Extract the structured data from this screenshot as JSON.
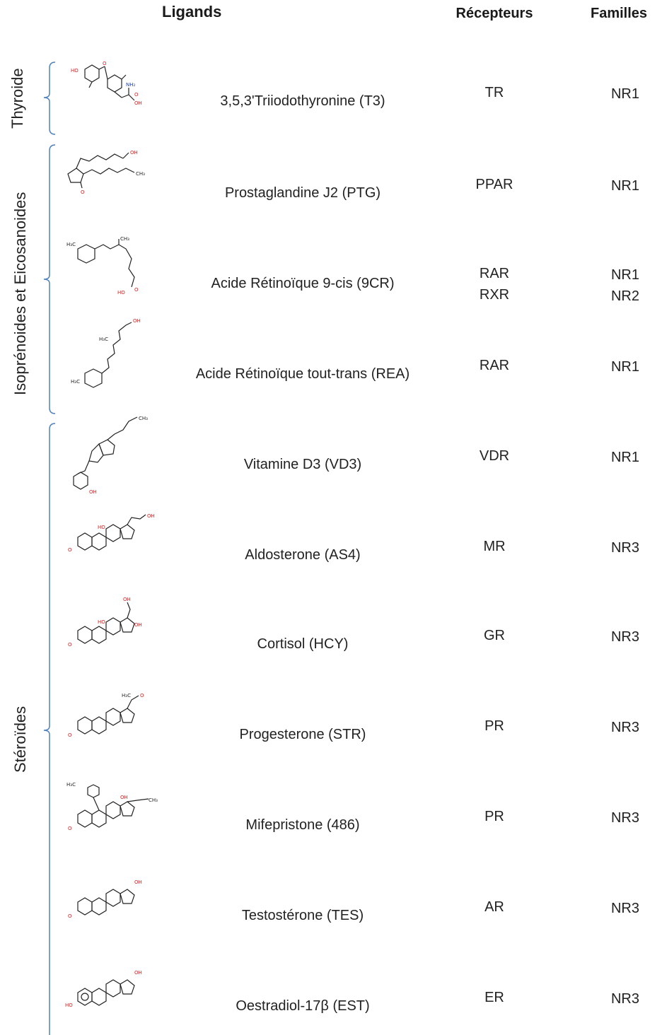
{
  "headers": {
    "ligands": "Ligands",
    "recepteurs": "Récepteurs",
    "familles": "Familles"
  },
  "groups": [
    {
      "label": "Thyroide"
    },
    {
      "label": "Isoprénoides et Eicosanoides"
    },
    {
      "label": "Stéroïdes"
    }
  ],
  "rows": [
    {
      "ligand": "3,5,3'Triiodothyronine (T3)",
      "receptors": [
        "TR"
      ],
      "families": [
        "NR1"
      ],
      "molecule_icon": "thyroid-hormone-structure"
    },
    {
      "ligand": "Prostaglandine J2 (PTG)",
      "receptors": [
        "PPAR"
      ],
      "families": [
        "NR1"
      ],
      "molecule_icon": "prostaglandin-structure"
    },
    {
      "ligand": "Acide Rétinoïque 9-cis (9CR)",
      "receptors": [
        "RAR",
        "RXR"
      ],
      "families": [
        "NR1",
        "NR2"
      ],
      "molecule_icon": "retinoic-acid-cis-structure"
    },
    {
      "ligand": "Acide Rétinoïque tout-trans (REA)",
      "receptors": [
        "RAR"
      ],
      "families": [
        "NR1"
      ],
      "molecule_icon": "retinoic-acid-trans-structure"
    },
    {
      "ligand": "Vitamine D3 (VD3)",
      "receptors": [
        "VDR"
      ],
      "families": [
        "NR1"
      ],
      "molecule_icon": "vitamin-d3-structure"
    },
    {
      "ligand": "Aldosterone (AS4)",
      "receptors": [
        "MR"
      ],
      "families": [
        "NR3"
      ],
      "molecule_icon": "steroid-structure"
    },
    {
      "ligand": "Cortisol (HCY)",
      "receptors": [
        "GR"
      ],
      "families": [
        "NR3"
      ],
      "molecule_icon": "steroid-structure"
    },
    {
      "ligand": "Progesterone (STR)",
      "receptors": [
        "PR"
      ],
      "families": [
        "NR3"
      ],
      "molecule_icon": "steroid-structure"
    },
    {
      "ligand": "Mifepristone (486)",
      "receptors": [
        "PR"
      ],
      "families": [
        "NR3"
      ],
      "molecule_icon": "steroid-structure"
    },
    {
      "ligand": "Testostérone (TES)",
      "receptors": [
        "AR"
      ],
      "families": [
        "NR3"
      ],
      "molecule_icon": "steroid-structure"
    },
    {
      "ligand": "Oestradiol-17β (EST)",
      "receptors": [
        "ER"
      ],
      "families": [
        "NR3"
      ],
      "molecule_icon": "steroid-structure"
    }
  ],
  "colors": {
    "bracket": "#4f81bd",
    "oxygen": "#d42020",
    "nitrogen": "#2040c0",
    "bond": "#222222"
  }
}
